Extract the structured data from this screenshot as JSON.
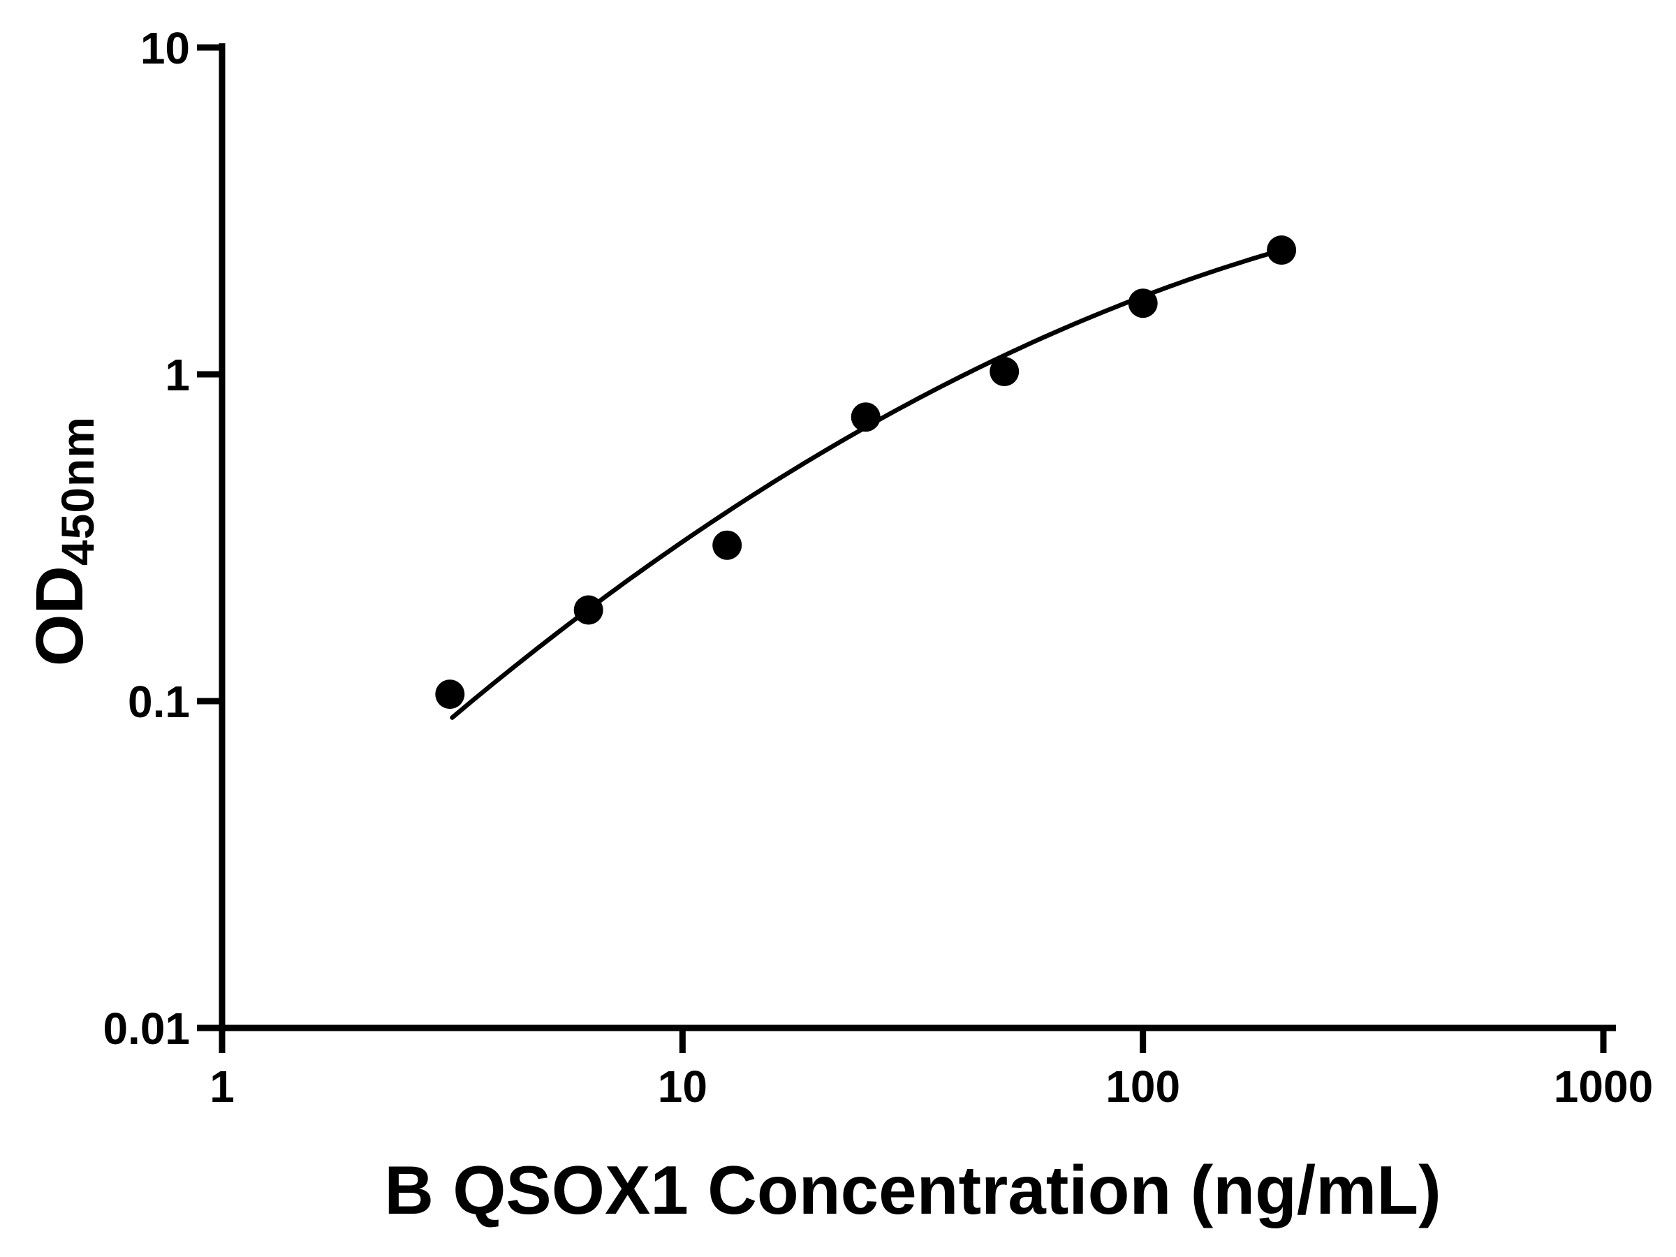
{
  "figure": {
    "background": "#ffffff"
  },
  "chart_data": {
    "type": "scatter",
    "title": "",
    "xlabel": "B QSOX1 Concentration (ng/mL)",
    "ylabel_main": "OD",
    "ylabel_sub": "450nm",
    "x_scale": "log10",
    "y_scale": "log10",
    "xlim": [
      1,
      1000
    ],
    "ylim": [
      0.01,
      10
    ],
    "x_ticks": [
      1,
      10,
      100,
      1000
    ],
    "x_tick_labels": [
      "1",
      "10",
      "100",
      "1000"
    ],
    "y_ticks": [
      10,
      1,
      0.1,
      0.01
    ],
    "y_tick_labels": [
      "10",
      "1",
      "0.1",
      "0.01"
    ],
    "grid": false,
    "legend": null,
    "axis_color": "#000000",
    "line_color": "#000000",
    "marker": {
      "shape": "circle",
      "color": "#000000",
      "radius_px": 21
    },
    "points": {
      "x": [
        3.125,
        6.25,
        12.5,
        25,
        50,
        100,
        200
      ],
      "y": [
        0.105,
        0.19,
        0.3,
        0.74,
        1.02,
        1.65,
        2.4
      ]
    },
    "fit_curve": {
      "type": "quadratic_loglog",
      "description": "log10(y) = a + b*log10(x) + c*log10(x)^2",
      "coefficients": [
        -1.6955,
        1.399,
        -0.216
      ],
      "x_range": [
        3.16,
        200
      ]
    }
  }
}
